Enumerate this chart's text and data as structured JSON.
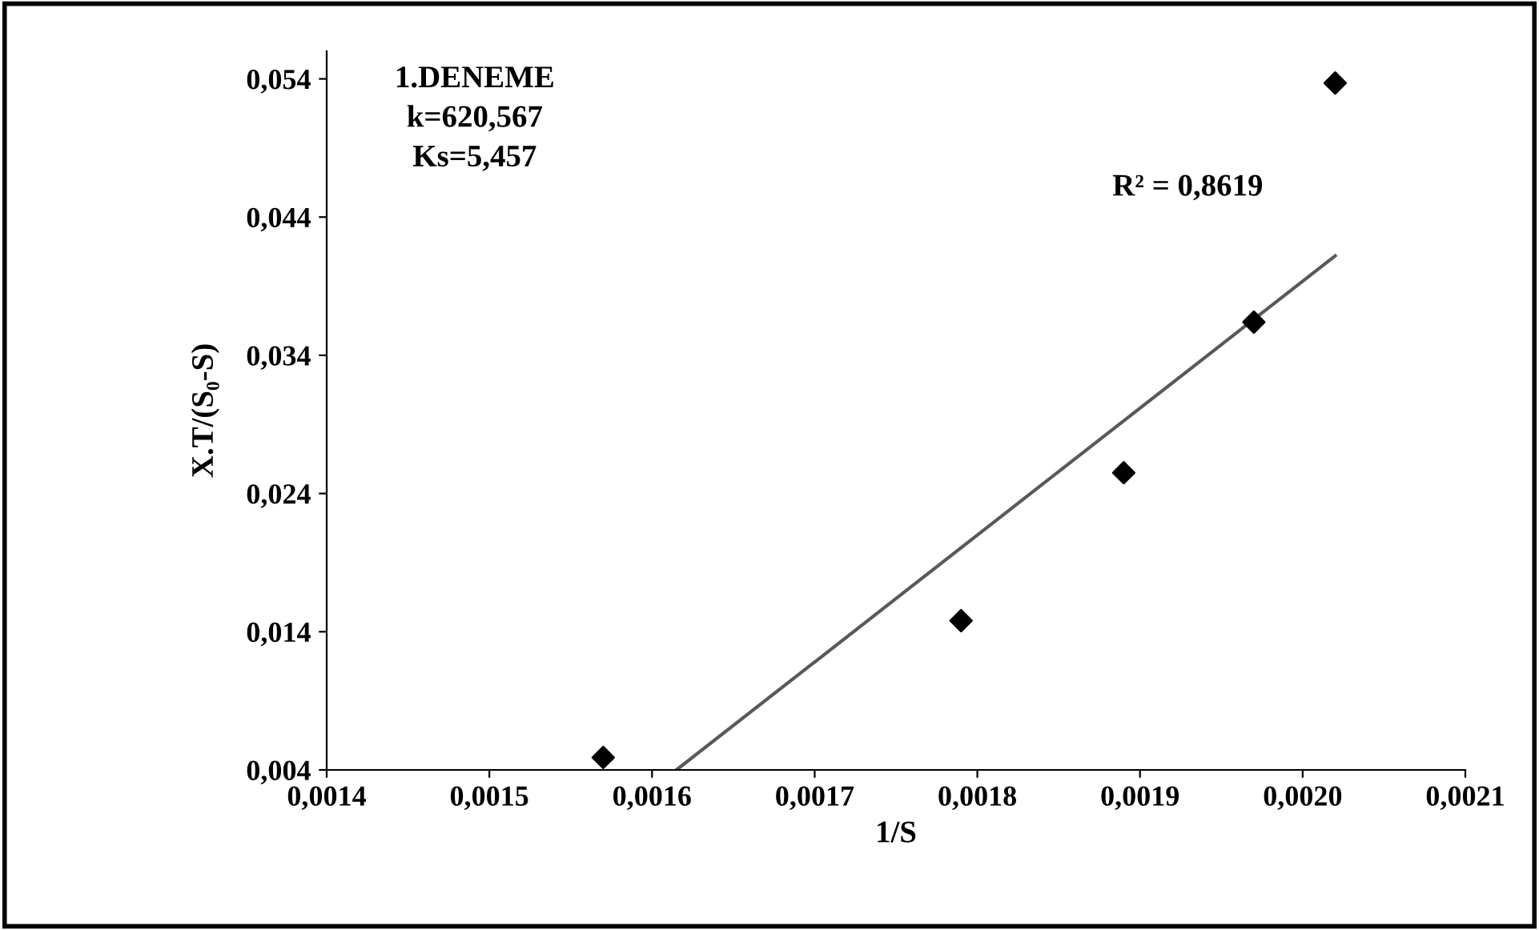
{
  "chart_data": {
    "type": "scatter",
    "xlabel": "1/S",
    "ylabel": "X.T/(S₀-S)",
    "x": [
      0.00157,
      0.00179,
      0.00189,
      0.00197,
      0.00202
    ],
    "series": [
      {
        "color": "#000000",
        "marker": "diamond",
        "values": [
          0.0049,
          0.0148,
          0.0255,
          0.0364,
          0.0537
        ]
      },
      {
        "type": "line",
        "color": "#595959",
        "marker": "none",
        "x": [
          0.001615,
          0.00202
        ],
        "values": [
          0.004,
          0.0412
        ]
      }
    ],
    "xlim": [
      0.0014,
      0.0021
    ],
    "xticks": [
      {
        "value": 0.0014,
        "label": "0,0014"
      },
      {
        "value": 0.0015,
        "label": "0,0015"
      },
      {
        "value": 0.0016,
        "label": "0,0016"
      },
      {
        "value": 0.0017,
        "label": "0,0017"
      },
      {
        "value": 0.0018,
        "label": "0,0018"
      },
      {
        "value": 0.0019,
        "label": "0,0019"
      },
      {
        "value": 0.002,
        "label": "0,0020"
      },
      {
        "value": 0.0021,
        "label": "0,0021"
      }
    ],
    "ylim": [
      0.004,
      0.056
    ],
    "yticks": [
      {
        "value": 0.004,
        "label": "0,004"
      },
      {
        "value": 0.014,
        "label": "0,014"
      },
      {
        "value": 0.024,
        "label": "0,024"
      },
      {
        "value": 0.034,
        "label": "0,034"
      },
      {
        "value": 0.044,
        "label": "0,044"
      },
      {
        "value": 0.054,
        "label": "0,054"
      }
    ],
    "annotations": [
      "1.DENEME",
      "k=620,567",
      "Ks=5,457",
      "R² = 0,8619"
    ],
    "grid": false,
    "legend": false
  }
}
